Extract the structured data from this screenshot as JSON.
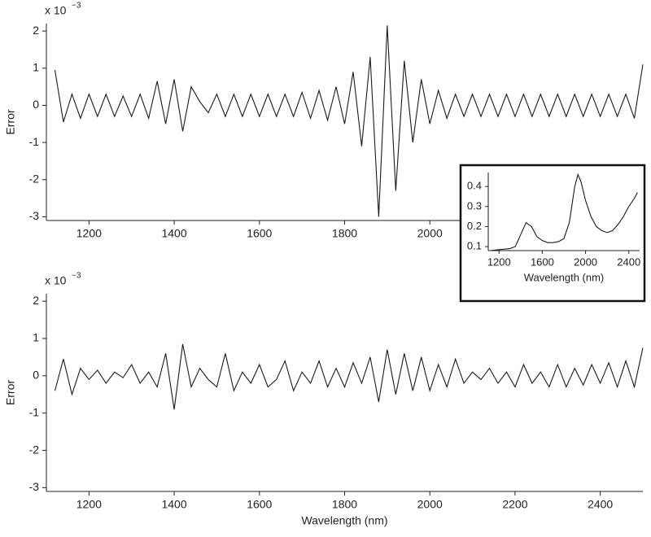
{
  "chart_data": [
    {
      "type": "line",
      "y_label": "Error",
      "y_scale": "x 10",
      "y_scale_exponent": "−3",
      "x": [
        1120,
        1140,
        1160,
        1180,
        1200,
        1220,
        1240,
        1260,
        1280,
        1300,
        1320,
        1340,
        1360,
        1380,
        1400,
        1420,
        1440,
        1460,
        1480,
        1500,
        1520,
        1540,
        1560,
        1580,
        1600,
        1620,
        1640,
        1660,
        1680,
        1700,
        1720,
        1740,
        1760,
        1780,
        1800,
        1820,
        1840,
        1860,
        1880,
        1900,
        1920,
        1940,
        1960,
        1980,
        2000,
        2020,
        2040,
        2060,
        2080,
        2100,
        2120,
        2140,
        2160,
        2180,
        2200,
        2220,
        2240,
        2260,
        2280,
        2300,
        2320,
        2340,
        2360,
        2380,
        2400,
        2420,
        2440,
        2460,
        2480,
        2500
      ],
      "values": [
        0.95,
        -0.45,
        0.3,
        -0.35,
        0.3,
        -0.3,
        0.3,
        -0.3,
        0.25,
        -0.3,
        0.3,
        -0.35,
        0.65,
        -0.5,
        0.7,
        -0.7,
        0.5,
        0.1,
        -0.2,
        0.3,
        -0.3,
        0.3,
        -0.3,
        0.3,
        -0.3,
        0.3,
        -0.3,
        0.3,
        -0.3,
        0.35,
        -0.35,
        0.4,
        -0.4,
        0.5,
        -0.5,
        0.9,
        -1.1,
        1.3,
        -3.0,
        2.15,
        -2.3,
        1.2,
        -1.0,
        0.7,
        -0.5,
        0.4,
        -0.35,
        0.3,
        -0.3,
        0.3,
        -0.3,
        0.3,
        -0.3,
        0.3,
        -0.3,
        0.3,
        -0.3,
        0.3,
        -0.3,
        0.3,
        -0.3,
        0.3,
        -0.3,
        0.3,
        -0.3,
        0.3,
        -0.3,
        0.3,
        -0.35,
        1.1
      ],
      "color": "#1a1a1a",
      "xlim": [
        1100,
        2500
      ],
      "ylim": [
        -3.1,
        2.2
      ],
      "xticks": [
        1200,
        1400,
        1600,
        1800,
        2000,
        2200,
        2400
      ],
      "yticks": [
        -3,
        -2,
        -1,
        0,
        1,
        2
      ]
    },
    {
      "type": "line",
      "y_label": "Error",
      "x_label": "Wavelength (nm)",
      "y_scale": "x 10",
      "y_scale_exponent": "−3",
      "x": [
        1120,
        1140,
        1160,
        1180,
        1200,
        1220,
        1240,
        1260,
        1280,
        1300,
        1320,
        1340,
        1360,
        1380,
        1400,
        1420,
        1440,
        1460,
        1480,
        1500,
        1520,
        1540,
        1560,
        1580,
        1600,
        1620,
        1640,
        1660,
        1680,
        1700,
        1720,
        1740,
        1760,
        1780,
        1800,
        1820,
        1840,
        1860,
        1880,
        1900,
        1920,
        1940,
        1960,
        1980,
        2000,
        2020,
        2040,
        2060,
        2080,
        2100,
        2120,
        2140,
        2160,
        2180,
        2200,
        2220,
        2240,
        2260,
        2280,
        2300,
        2320,
        2340,
        2360,
        2380,
        2400,
        2420,
        2440,
        2460,
        2480,
        2500
      ],
      "values": [
        -0.4,
        0.45,
        -0.5,
        0.2,
        -0.1,
        0.15,
        -0.2,
        0.1,
        -0.05,
        0.3,
        -0.2,
        0.1,
        -0.3,
        0.6,
        -0.9,
        0.85,
        -0.3,
        0.2,
        -0.1,
        -0.3,
        0.6,
        -0.4,
        0.1,
        -0.2,
        0.3,
        -0.3,
        -0.1,
        0.4,
        -0.4,
        0.1,
        -0.2,
        0.4,
        -0.3,
        0.2,
        -0.3,
        0.35,
        -0.2,
        0.5,
        -0.7,
        0.7,
        -0.5,
        0.6,
        -0.4,
        0.5,
        -0.4,
        0.3,
        -0.3,
        0.45,
        -0.2,
        0.1,
        -0.1,
        0.2,
        -0.2,
        0.1,
        -0.3,
        0.3,
        -0.2,
        0.1,
        -0.3,
        0.3,
        -0.3,
        0.2,
        -0.25,
        0.3,
        -0.2,
        0.35,
        -0.3,
        0.4,
        -0.3,
        0.75
      ],
      "color": "#1a1a1a",
      "xlim": [
        1100,
        2500
      ],
      "ylim": [
        -3.1,
        2.2
      ],
      "xticks": [
        1200,
        1400,
        1600,
        1800,
        2000,
        2200,
        2400
      ],
      "yticks": [
        -3,
        -2,
        -1,
        0,
        1,
        2
      ]
    },
    {
      "type": "line",
      "x_label": "Wavelength (nm)",
      "x": [
        1120,
        1200,
        1300,
        1350,
        1400,
        1450,
        1500,
        1550,
        1600,
        1650,
        1700,
        1750,
        1800,
        1850,
        1900,
        1930,
        1960,
        2000,
        2050,
        2100,
        2150,
        2200,
        2250,
        2300,
        2350,
        2400,
        2450,
        2480
      ],
      "values": [
        0.08,
        0.085,
        0.09,
        0.1,
        0.16,
        0.22,
        0.2,
        0.15,
        0.13,
        0.12,
        0.12,
        0.125,
        0.14,
        0.22,
        0.4,
        0.46,
        0.42,
        0.33,
        0.25,
        0.2,
        0.18,
        0.17,
        0.18,
        0.21,
        0.25,
        0.3,
        0.34,
        0.37
      ],
      "color": "#1a1a1a",
      "xlim": [
        1100,
        2500
      ],
      "ylim": [
        0.08,
        0.47
      ],
      "xticks": [
        1200,
        1600,
        2000,
        2400
      ],
      "yticks": [
        0.1,
        0.2,
        0.3,
        0.4
      ]
    }
  ]
}
